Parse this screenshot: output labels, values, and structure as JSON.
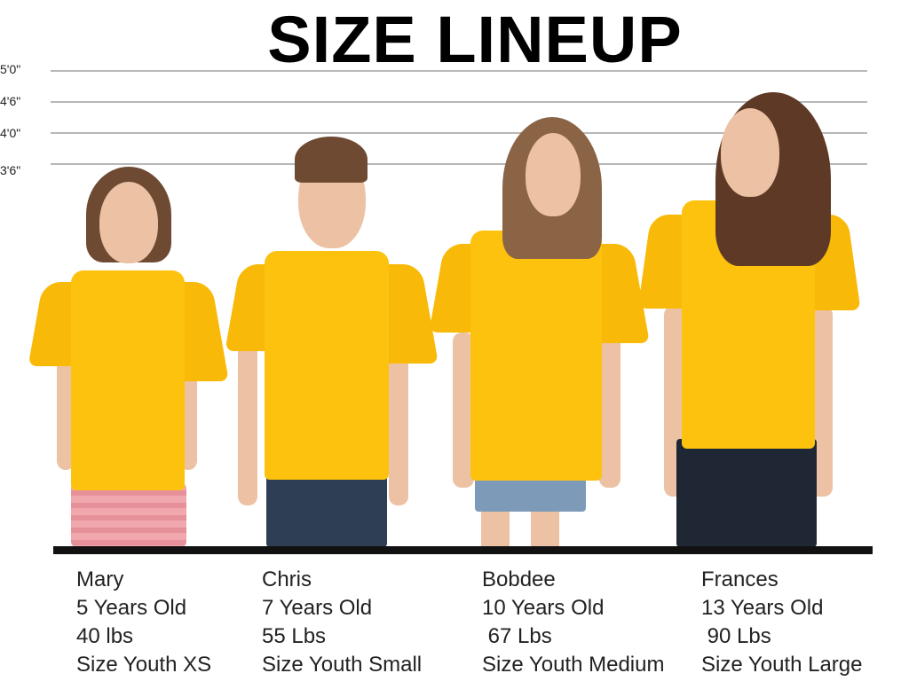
{
  "title": "SIZE LINEUP",
  "height_marks": [
    "5'0\"",
    "4'6\"",
    "4'0\"",
    "3'6\""
  ],
  "colors": {
    "shirt": "#fdc20e",
    "floor": "#111111"
  },
  "kids": [
    {
      "name": "Mary",
      "age": "5 Years Old",
      "weight": "40 lbs",
      "size": "Size Youth XS"
    },
    {
      "name": "Chris",
      "age": "7 Years Old",
      "weight": "55 Lbs",
      "size": "Size Youth Small"
    },
    {
      "name": "Bobdee",
      "age": "10 Years Old",
      "weight": " 67 Lbs",
      "size": "Size Youth Medium"
    },
    {
      "name": "Frances",
      "age": "13 Years Old",
      "weight": " 90 Lbs",
      "size": "Size Youth Large"
    }
  ]
}
